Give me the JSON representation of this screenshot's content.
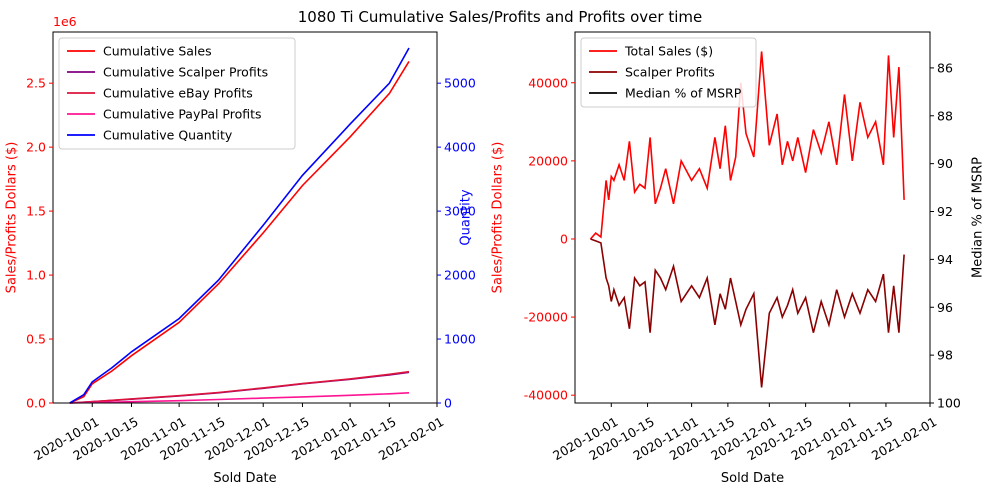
{
  "figure": {
    "title": "1080 Ti Cumulative Sales/Profits and Profits over time"
  },
  "chart_data": [
    {
      "type": "line",
      "xlabel": "Sold Date",
      "ylabel": "Sales/Profits Dollars ($)",
      "y_offset_label": "1e6",
      "y2label": "Quantity",
      "xlim": [
        "2020-09-17",
        "2021-02-01"
      ],
      "ylim": [
        0,
        2900000
      ],
      "y2lim": [
        0,
        5800
      ],
      "x_ticks": [
        "2020-10-01",
        "2020-10-15",
        "2020-11-01",
        "2020-11-15",
        "2020-12-01",
        "2020-12-15",
        "2021-01-01",
        "2021-01-15",
        "2021-02-01"
      ],
      "y_ticks": [
        0,
        500000,
        1000000,
        1500000,
        2000000,
        2500000
      ],
      "y_tick_labels": [
        "0.0",
        "0.5",
        "1.0",
        "1.5",
        "2.0",
        "2.5"
      ],
      "y2_ticks": [
        0,
        1000,
        2000,
        3000,
        4000,
        5000
      ],
      "legend_position": "top-left",
      "grid": false,
      "axis_colors": {
        "left": "#ff0000",
        "right": "#0000ff"
      },
      "series": [
        {
          "name": "Cumulative Sales",
          "color": "#ff0000",
          "axis": "left",
          "x": [
            "2020-09-23",
            "2020-09-28",
            "2020-10-01",
            "2020-10-08",
            "2020-10-15",
            "2020-11-01",
            "2020-11-15",
            "2020-12-01",
            "2020-12-15",
            "2021-01-01",
            "2021-01-15",
            "2021-01-22"
          ],
          "y": [
            0,
            50000,
            150000,
            250000,
            370000,
            630000,
            930000,
            1330000,
            1700000,
            2080000,
            2420000,
            2670000
          ]
        },
        {
          "name": "Cumulative Scalper Profits",
          "color": "#800080",
          "axis": "left",
          "x": [
            "2020-09-23",
            "2020-10-01",
            "2020-10-15",
            "2020-11-01",
            "2020-11-15",
            "2020-12-01",
            "2020-12-15",
            "2021-01-01",
            "2021-01-15",
            "2021-01-22"
          ],
          "y": [
            0,
            10000,
            30000,
            55000,
            80000,
            115000,
            150000,
            185000,
            220000,
            240000
          ]
        },
        {
          "name": "Cumulative eBay Profits",
          "color": "#dc143c",
          "axis": "left",
          "x": [
            "2020-09-23",
            "2020-10-01",
            "2020-10-15",
            "2020-11-01",
            "2020-11-15",
            "2020-12-01",
            "2020-12-15",
            "2021-01-01",
            "2021-01-15",
            "2021-01-22"
          ],
          "y": [
            0,
            10000,
            32000,
            57000,
            82000,
            118000,
            152000,
            188000,
            224000,
            245000
          ]
        },
        {
          "name": "Cumulative PayPal Profits",
          "color": "#ff1493",
          "axis": "left",
          "x": [
            "2020-09-23",
            "2020-10-01",
            "2020-10-15",
            "2020-11-01",
            "2020-11-15",
            "2020-12-01",
            "2020-12-15",
            "2021-01-01",
            "2021-01-15",
            "2021-01-22"
          ],
          "y": [
            0,
            3000,
            10000,
            18000,
            27000,
            38000,
            48000,
            60000,
            72000,
            80000
          ]
        },
        {
          "name": "Cumulative Quantity",
          "color": "#0000ff",
          "axis": "right",
          "x": [
            "2020-09-23",
            "2020-09-28",
            "2020-10-01",
            "2020-10-08",
            "2020-10-15",
            "2020-11-01",
            "2020-11-15",
            "2020-12-01",
            "2020-12-15",
            "2021-01-01",
            "2021-01-15",
            "2021-01-22"
          ],
          "y": [
            0,
            130,
            330,
            550,
            800,
            1320,
            1920,
            2780,
            3560,
            4360,
            5000,
            5550
          ]
        }
      ]
    },
    {
      "type": "line",
      "xlabel": "Sold Date",
      "ylabel": "Sales/Profits Dollars ($)",
      "y2label": "Median % of MSRP",
      "xlim": [
        "2020-09-17",
        "2021-02-01"
      ],
      "ylim": [
        -42000,
        53000
      ],
      "y2lim": [
        100,
        84.5
      ],
      "y2_inverted": true,
      "x_ticks": [
        "2020-10-01",
        "2020-10-15",
        "2020-11-01",
        "2020-11-15",
        "2020-12-01",
        "2020-12-15",
        "2021-01-01",
        "2021-01-15",
        "2021-02-01"
      ],
      "y_ticks": [
        -40000,
        -20000,
        0,
        20000,
        40000
      ],
      "y2_ticks": [
        86,
        88,
        90,
        92,
        94,
        96,
        98,
        100
      ],
      "legend_position": "top-left",
      "grid": false,
      "axis_colors": {
        "left": "#ff0000",
        "right": "#000000"
      },
      "series": [
        {
          "name": "Total Sales ($)",
          "color": "#ff0000",
          "axis": "left",
          "x": [
            "2020-09-23",
            "2020-09-25",
            "2020-09-27",
            "2020-09-29",
            "2020-09-30",
            "2020-10-01",
            "2020-10-02",
            "2020-10-04",
            "2020-10-06",
            "2020-10-08",
            "2020-10-10",
            "2020-10-12",
            "2020-10-14",
            "2020-10-16",
            "2020-10-18",
            "2020-10-20",
            "2020-10-22",
            "2020-10-25",
            "2020-10-28",
            "2020-11-01",
            "2020-11-04",
            "2020-11-07",
            "2020-11-10",
            "2020-11-12",
            "2020-11-14",
            "2020-11-16",
            "2020-11-18",
            "2020-11-20",
            "2020-11-22",
            "2020-11-25",
            "2020-11-28",
            "2020-12-01",
            "2020-12-04",
            "2020-12-06",
            "2020-12-08",
            "2020-12-10",
            "2020-12-12",
            "2020-12-15",
            "2020-12-18",
            "2020-12-21",
            "2020-12-24",
            "2020-12-27",
            "2020-12-30",
            "2021-01-02",
            "2021-01-05",
            "2021-01-08",
            "2021-01-11",
            "2021-01-14",
            "2021-01-16",
            "2021-01-18",
            "2021-01-20",
            "2021-01-22"
          ],
          "y": [
            0,
            1500,
            500,
            15000,
            10000,
            16000,
            15000,
            19000,
            15000,
            25000,
            12000,
            14000,
            13000,
            26000,
            9000,
            13000,
            18000,
            9000,
            20000,
            15000,
            18000,
            13000,
            26000,
            18000,
            29000,
            15000,
            21000,
            40000,
            27000,
            21000,
            48000,
            24000,
            32000,
            19000,
            25000,
            20000,
            26000,
            17000,
            28000,
            22000,
            30000,
            19000,
            37000,
            20000,
            35000,
            26000,
            30000,
            19000,
            47000,
            26000,
            44000,
            10000
          ]
        },
        {
          "name": "Scalper Profits",
          "color": "#8b0000",
          "axis": "left",
          "x": [
            "2020-09-23",
            "2020-09-25",
            "2020-09-27",
            "2020-09-29",
            "2020-09-30",
            "2020-10-01",
            "2020-10-02",
            "2020-10-04",
            "2020-10-06",
            "2020-10-08",
            "2020-10-10",
            "2020-10-12",
            "2020-10-14",
            "2020-10-16",
            "2020-10-18",
            "2020-10-20",
            "2020-10-22",
            "2020-10-25",
            "2020-10-28",
            "2020-11-01",
            "2020-11-04",
            "2020-11-07",
            "2020-11-10",
            "2020-11-12",
            "2020-11-14",
            "2020-11-16",
            "2020-11-18",
            "2020-11-20",
            "2020-11-22",
            "2020-11-25",
            "2020-11-28",
            "2020-12-01",
            "2020-12-04",
            "2020-12-06",
            "2020-12-08",
            "2020-12-10",
            "2020-12-12",
            "2020-12-15",
            "2020-12-18",
            "2020-12-21",
            "2020-12-24",
            "2020-12-27",
            "2020-12-30",
            "2021-01-02",
            "2021-01-05",
            "2021-01-08",
            "2021-01-11",
            "2021-01-14",
            "2021-01-16",
            "2021-01-18",
            "2021-01-20",
            "2021-01-22"
          ],
          "y": [
            0,
            -500,
            -1000,
            -10000,
            -12000,
            -16000,
            -13000,
            -17000,
            -15000,
            -23000,
            -10000,
            -12000,
            -11000,
            -24000,
            -8000,
            -10000,
            -13000,
            -7000,
            -16000,
            -12000,
            -15000,
            -10000,
            -22000,
            -14000,
            -18000,
            -10000,
            -16000,
            -22000,
            -18000,
            -14000,
            -38000,
            -19000,
            -15000,
            -20000,
            -17000,
            -13000,
            -19000,
            -15000,
            -24000,
            -16000,
            -22000,
            -13000,
            -20000,
            -14000,
            -19000,
            -13000,
            -16000,
            -9000,
            -24000,
            -12000,
            -24000,
            -4000
          ]
        },
        {
          "name": "Median % of MSRP",
          "color": "#000000",
          "axis": "right",
          "x": [],
          "y": []
        }
      ]
    }
  ]
}
